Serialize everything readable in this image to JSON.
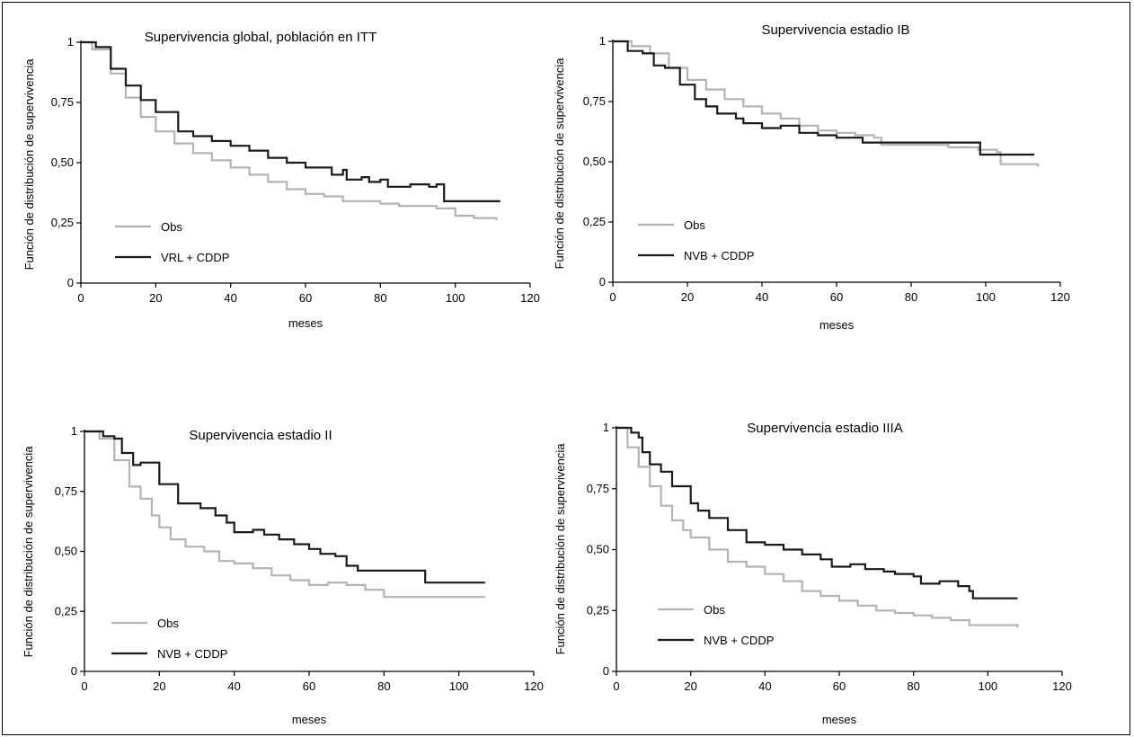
{
  "figure": {
    "xlabel": "meses",
    "ylabel": "Función de distribución de supervivencia",
    "colors": {
      "obs": "#b3b3b3",
      "treatment": "#1a1a1a",
      "axis": "#000000"
    }
  },
  "chart_data": [
    {
      "type": "line",
      "title": "Supervivencia global, población en ITT",
      "xlabel": "meses",
      "ylabel": "Función de distribución de supervivencia",
      "xlim": [
        0,
        120
      ],
      "ylim": [
        0,
        1
      ],
      "x_ticks": [
        "0",
        "20",
        "40",
        "60",
        "80",
        "100",
        "120"
      ],
      "y_ticks": [
        "0",
        "0,25",
        "0,50",
        "0,75",
        "1"
      ],
      "legend": "bottom-left",
      "grid": false,
      "series": [
        {
          "name": "Obs",
          "color": "#b3b3b3",
          "step": true,
          "points": [
            [
              0,
              1
            ],
            [
              3,
              0.97
            ],
            [
              8,
              0.87
            ],
            [
              12,
              0.77
            ],
            [
              16,
              0.69
            ],
            [
              20,
              0.63
            ],
            [
              25,
              0.58
            ],
            [
              30,
              0.54
            ],
            [
              35,
              0.51
            ],
            [
              40,
              0.48
            ],
            [
              45,
              0.45
            ],
            [
              50,
              0.42
            ],
            [
              55,
              0.39
            ],
            [
              60,
              0.37
            ],
            [
              65,
              0.36
            ],
            [
              70,
              0.34
            ],
            [
              75,
              0.34
            ],
            [
              80,
              0.33
            ],
            [
              85,
              0.32
            ],
            [
              90,
              0.32
            ],
            [
              95,
              0.31
            ],
            [
              100,
              0.28
            ],
            [
              105,
              0.27
            ],
            [
              111,
              0.26
            ]
          ]
        },
        {
          "name": "VRL + CDDP",
          "color": "#1a1a1a",
          "step": true,
          "points": [
            [
              0,
              1
            ],
            [
              4,
              0.98
            ],
            [
              8,
              0.89
            ],
            [
              12,
              0.82
            ],
            [
              16,
              0.76
            ],
            [
              20,
              0.71
            ],
            [
              26,
              0.63
            ],
            [
              30,
              0.61
            ],
            [
              35,
              0.59
            ],
            [
              40,
              0.57
            ],
            [
              45,
              0.55
            ],
            [
              50,
              0.52
            ],
            [
              55,
              0.5
            ],
            [
              60,
              0.48
            ],
            [
              67,
              0.45
            ],
            [
              70,
              0.47
            ],
            [
              71,
              0.43
            ],
            [
              75,
              0.44
            ],
            [
              77,
              0.42
            ],
            [
              80,
              0.43
            ],
            [
              82,
              0.4
            ],
            [
              88,
              0.41
            ],
            [
              93,
              0.4
            ],
            [
              95,
              0.41
            ],
            [
              97,
              0.34
            ],
            [
              104,
              0.34
            ],
            [
              112,
              0.34
            ]
          ]
        }
      ]
    },
    {
      "type": "line",
      "title": "Supervivencia estadio IB",
      "xlabel": "meses",
      "ylabel": "Función de distribución de supervivencia",
      "xlim": [
        0,
        120
      ],
      "ylim": [
        0,
        1
      ],
      "x_ticks": [
        "0",
        "20",
        "40",
        "60",
        "80",
        "100",
        "120"
      ],
      "y_ticks": [
        "0",
        "0,25",
        "0,50",
        "0,75",
        "1"
      ],
      "legend": "bottom-left",
      "grid": false,
      "series": [
        {
          "name": "Obs",
          "color": "#b3b3b3",
          "step": true,
          "points": [
            [
              0,
              1
            ],
            [
              5,
              0.98
            ],
            [
              10,
              0.95
            ],
            [
              15,
              0.89
            ],
            [
              20,
              0.84
            ],
            [
              25,
              0.8
            ],
            [
              30,
              0.76
            ],
            [
              35,
              0.73
            ],
            [
              40,
              0.7
            ],
            [
              45,
              0.68
            ],
            [
              50,
              0.65
            ],
            [
              55,
              0.63
            ],
            [
              60,
              0.62
            ],
            [
              65,
              0.61
            ],
            [
              70,
              0.6
            ],
            [
              72,
              0.57
            ],
            [
              80,
              0.57
            ],
            [
              90,
              0.56
            ],
            [
              98,
              0.55
            ],
            [
              103,
              0.54
            ],
            [
              104,
              0.49
            ],
            [
              114,
              0.48
            ]
          ]
        },
        {
          "name": "NVB + CDDP",
          "color": "#1a1a1a",
          "step": true,
          "points": [
            [
              0,
              1
            ],
            [
              4,
              0.96
            ],
            [
              8,
              0.95
            ],
            [
              11,
              0.9
            ],
            [
              14,
              0.89
            ],
            [
              18,
              0.82
            ],
            [
              22,
              0.76
            ],
            [
              25,
              0.73
            ],
            [
              28,
              0.7
            ],
            [
              33,
              0.68
            ],
            [
              35,
              0.66
            ],
            [
              40,
              0.64
            ],
            [
              45,
              0.65
            ],
            [
              50,
              0.62
            ],
            [
              55,
              0.61
            ],
            [
              60,
              0.6
            ],
            [
              67,
              0.58
            ],
            [
              75,
              0.58
            ],
            [
              85,
              0.58
            ],
            [
              98,
              0.58
            ],
            [
              98.5,
              0.53
            ],
            [
              105,
              0.53
            ],
            [
              113,
              0.53
            ]
          ]
        }
      ]
    },
    {
      "type": "line",
      "title": "Supervivencia estadio II",
      "xlabel": "meses",
      "ylabel": "Función de distribución de supervivencia",
      "xlim": [
        0,
        120
      ],
      "ylim": [
        0,
        1
      ],
      "x_ticks": [
        "0",
        "20",
        "40",
        "60",
        "80",
        "100",
        "120"
      ],
      "y_ticks": [
        "0",
        "0,25",
        "0,50",
        "0,75",
        "1"
      ],
      "legend": "bottom-left",
      "grid": false,
      "series": [
        {
          "name": "Obs",
          "color": "#b3b3b3",
          "step": true,
          "points": [
            [
              0,
              1
            ],
            [
              4,
              0.97
            ],
            [
              8,
              0.88
            ],
            [
              12,
              0.77
            ],
            [
              15,
              0.72
            ],
            [
              18,
              0.65
            ],
            [
              20,
              0.6
            ],
            [
              23,
              0.55
            ],
            [
              27,
              0.52
            ],
            [
              32,
              0.5
            ],
            [
              36,
              0.46
            ],
            [
              40,
              0.45
            ],
            [
              45,
              0.43
            ],
            [
              50,
              0.4
            ],
            [
              55,
              0.38
            ],
            [
              60,
              0.36
            ],
            [
              65,
              0.37
            ],
            [
              70,
              0.36
            ],
            [
              75,
              0.34
            ],
            [
              80,
              0.31
            ],
            [
              90,
              0.31
            ],
            [
              100,
              0.31
            ],
            [
              107,
              0.31
            ]
          ]
        },
        {
          "name": "NVB + CDDP",
          "color": "#1a1a1a",
          "step": true,
          "points": [
            [
              0,
              1
            ],
            [
              5,
              0.98
            ],
            [
              8,
              0.97
            ],
            [
              10,
              0.91
            ],
            [
              13,
              0.86
            ],
            [
              15,
              0.87
            ],
            [
              20,
              0.78
            ],
            [
              25,
              0.7
            ],
            [
              31,
              0.68
            ],
            [
              35,
              0.65
            ],
            [
              38,
              0.62
            ],
            [
              40,
              0.58
            ],
            [
              45,
              0.59
            ],
            [
              48,
              0.57
            ],
            [
              52,
              0.55
            ],
            [
              56,
              0.53
            ],
            [
              60,
              0.51
            ],
            [
              63,
              0.49
            ],
            [
              67,
              0.48
            ],
            [
              70,
              0.44
            ],
            [
              73,
              0.42
            ],
            [
              80,
              0.42
            ],
            [
              90,
              0.42
            ],
            [
              91,
              0.37
            ],
            [
              100,
              0.37
            ],
            [
              107,
              0.37
            ]
          ]
        }
      ]
    },
    {
      "type": "line",
      "title": "Supervivencia estadio IIIA",
      "xlabel": "meses",
      "ylabel": "Función de distribución de supervivencia",
      "xlim": [
        0,
        120
      ],
      "ylim": [
        0,
        1
      ],
      "x_ticks": [
        "0",
        "20",
        "40",
        "60",
        "80",
        "100",
        "120"
      ],
      "y_ticks": [
        "0",
        "0,25",
        "0,50",
        "0,75",
        "1"
      ],
      "legend": "bottom-left",
      "grid": false,
      "series": [
        {
          "name": "Obs",
          "color": "#b3b3b3",
          "step": true,
          "points": [
            [
              0,
              1
            ],
            [
              3,
              0.92
            ],
            [
              6,
              0.84
            ],
            [
              9,
              0.76
            ],
            [
              12,
              0.68
            ],
            [
              15,
              0.62
            ],
            [
              18,
              0.58
            ],
            [
              20,
              0.55
            ],
            [
              25,
              0.5
            ],
            [
              30,
              0.45
            ],
            [
              35,
              0.43
            ],
            [
              40,
              0.4
            ],
            [
              45,
              0.37
            ],
            [
              50,
              0.33
            ],
            [
              55,
              0.31
            ],
            [
              60,
              0.29
            ],
            [
              65,
              0.27
            ],
            [
              70,
              0.25
            ],
            [
              75,
              0.24
            ],
            [
              80,
              0.23
            ],
            [
              85,
              0.22
            ],
            [
              90,
              0.21
            ],
            [
              95,
              0.19
            ],
            [
              100,
              0.19
            ],
            [
              108,
              0.18
            ]
          ]
        },
        {
          "name": "NVB + CDDP",
          "color": "#1a1a1a",
          "step": true,
          "points": [
            [
              0,
              1
            ],
            [
              4,
              0.98
            ],
            [
              6,
              0.96
            ],
            [
              7,
              0.9
            ],
            [
              9,
              0.85
            ],
            [
              12,
              0.82
            ],
            [
              15,
              0.76
            ],
            [
              20,
              0.69
            ],
            [
              22,
              0.66
            ],
            [
              25,
              0.63
            ],
            [
              30,
              0.58
            ],
            [
              35,
              0.53
            ],
            [
              40,
              0.52
            ],
            [
              45,
              0.5
            ],
            [
              50,
              0.48
            ],
            [
              55,
              0.46
            ],
            [
              58,
              0.43
            ],
            [
              63,
              0.44
            ],
            [
              67,
              0.42
            ],
            [
              72,
              0.41
            ],
            [
              75,
              0.4
            ],
            [
              80,
              0.39
            ],
            [
              82,
              0.36
            ],
            [
              87,
              0.37
            ],
            [
              92,
              0.35
            ],
            [
              95,
              0.33
            ],
            [
              96,
              0.3
            ],
            [
              102,
              0.3
            ],
            [
              108,
              0.3
            ]
          ]
        }
      ]
    }
  ]
}
